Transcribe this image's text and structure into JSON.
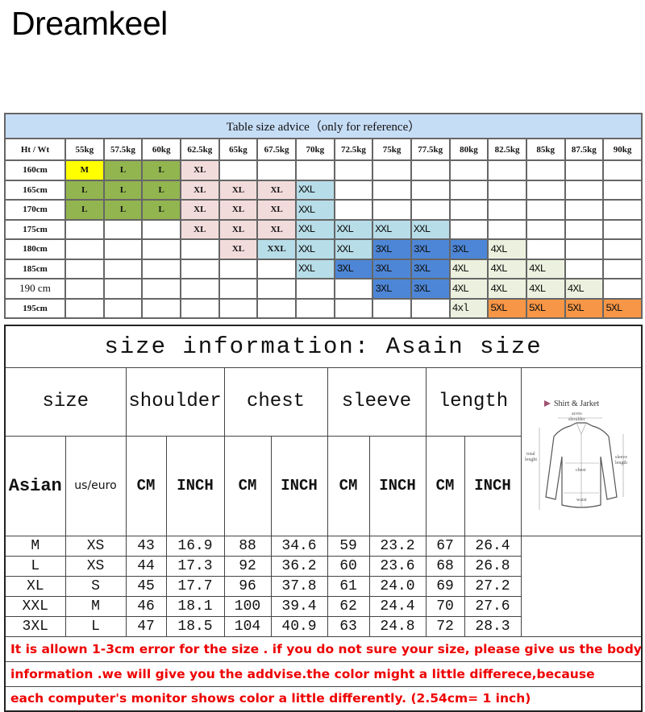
{
  "brand": "Dreamkeel",
  "advice": {
    "title": "Table size advice（only for reference）",
    "corner": "Ht / Wt",
    "weights": [
      "55kg",
      "57.5kg",
      "60kg",
      "62.5kg",
      "65kg",
      "67.5kg",
      "70kg",
      "72.5kg",
      "75kg",
      "77.5kg",
      "80kg",
      "82.5kg",
      "85kg",
      "87.5kg",
      "90kg"
    ],
    "colors": {
      "M": "#ffff00",
      "L": "#92b54f",
      "XL": "#f2dcdb",
      "XXL": "#b7dde8",
      "3XL": "#4d86d6",
      "4XL": "#ebf1de",
      "4xl": "#ebf1de",
      "5XL": "#f79646"
    },
    "rows": [
      {
        "height": "160cm",
        "cells": [
          "M",
          "L",
          "L",
          "XL",
          "",
          "",
          "",
          "",
          "",
          "",
          "",
          "",
          "",
          "",
          ""
        ]
      },
      {
        "height": "165cm",
        "cells": [
          "L",
          "L",
          "L",
          "XL",
          "XL",
          "XL",
          "XXL",
          "",
          "",
          "",
          "",
          "",
          "",
          "",
          ""
        ]
      },
      {
        "height": "170cm",
        "cells": [
          "L",
          "L",
          "L",
          "XL",
          "XL",
          "XL",
          "XXL",
          "",
          "",
          "",
          "",
          "",
          "",
          "",
          ""
        ]
      },
      {
        "height": "175cm",
        "cells": [
          "",
          "",
          "",
          "XL",
          "XL",
          "XL",
          "XXL",
          "XXL",
          "XXL",
          "XXL",
          "",
          "",
          "",
          "",
          ""
        ]
      },
      {
        "height": "180cm",
        "cells": [
          "",
          "",
          "",
          "",
          "XL",
          "XXL",
          "XXL",
          "XXL",
          "3XL",
          "3XL",
          "3XL",
          "4XL",
          "",
          "",
          ""
        ]
      },
      {
        "height": "185cm",
        "cells": [
          "",
          "",
          "",
          "",
          "",
          "",
          "XXL",
          "3XL",
          "3XL",
          "3XL",
          "4XL",
          "4XL",
          "4XL",
          "",
          ""
        ]
      },
      {
        "height": "190 cm",
        "cells": [
          "",
          "",
          "",
          "",
          "",
          "",
          "",
          "",
          "3XL",
          "3XL",
          "4XL",
          "4XL",
          "4XL",
          "4XL",
          ""
        ]
      },
      {
        "height": "195cm",
        "cells": [
          "",
          "",
          "",
          "",
          "",
          "",
          "",
          "",
          "",
          "",
          "4xl",
          "5XL",
          "5XL",
          "5XL",
          "5XL"
        ]
      }
    ]
  },
  "info": {
    "title": "size information:  Asain size",
    "groups": [
      "size",
      "shoulder",
      "chest",
      "sleeve",
      "length"
    ],
    "subheaders": [
      "Asian",
      "us/euro",
      "CM",
      "INCH",
      "CM",
      "INCH",
      "CM",
      "INCH",
      "CM",
      "INCH"
    ],
    "rows": [
      [
        "M",
        "XS",
        "43",
        "16.9",
        "88",
        "34.6",
        "59",
        "23.2",
        "67",
        "26.4"
      ],
      [
        "L",
        "XS",
        "44",
        "17.3",
        "92",
        "36.2",
        "60",
        "23.6",
        "68",
        "26.8"
      ],
      [
        "XL",
        "S",
        "45",
        "17.7",
        "96",
        "37.8",
        "61",
        "24.0",
        "69",
        "27.2"
      ],
      [
        "XXL",
        "M",
        "46",
        "18.1",
        "100",
        "39.4",
        "62",
        "24.4",
        "70",
        "27.6"
      ],
      [
        "3XL",
        "L",
        "47",
        "18.5",
        "104",
        "40.9",
        "63",
        "24.8",
        "72",
        "28.3"
      ]
    ],
    "diagram": {
      "title": "Shirt & Jarket",
      "across_shoulder": [
        "acros",
        "shoulder"
      ],
      "total_length": [
        "total",
        "lenght"
      ],
      "sleeve_length": [
        "sleeve",
        "length"
      ],
      "chest": "chest",
      "waist": "waist"
    },
    "notes": [
      "It is allown 1-3cm error for the size . if you do not sure your size, please give us the body",
      "information .we will give you the addvise.the color might a little differece,because",
      "each computer's monitor shows color a little differently.   (2.54cm= 1 inch)"
    ]
  }
}
